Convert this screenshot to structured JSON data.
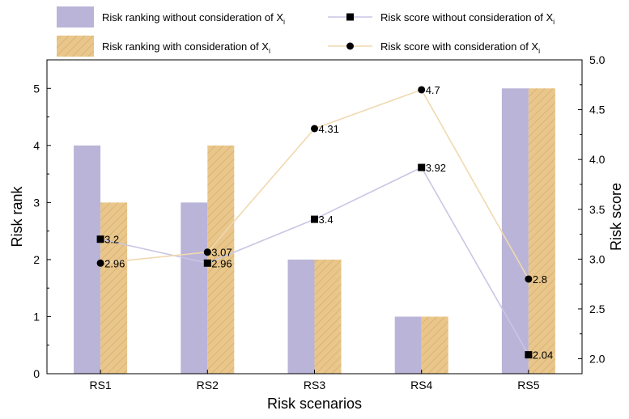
{
  "chart_data": {
    "type": "bar",
    "categories": [
      "RS1",
      "RS2",
      "RS3",
      "RS4",
      "RS5"
    ],
    "xlabel": "Risk scenarios",
    "ylabel": "Risk rank",
    "y2label": "Risk score",
    "ylim": [
      0,
      5.5
    ],
    "y2lim": [
      1.85,
      5.0
    ],
    "yticks": [
      "0",
      "1",
      "2",
      "3",
      "4",
      "5"
    ],
    "y2ticks": [
      "2.0",
      "2.5",
      "3.0",
      "3.5",
      "4.0",
      "4.5",
      "5.0"
    ],
    "grid": false,
    "legend_position": "top",
    "bar_series": [
      {
        "name": "Risk ranking without consideration of X",
        "subscript": "i",
        "values": [
          4,
          3,
          2,
          1,
          5
        ],
        "color": "#b9b4d8"
      },
      {
        "name": "Risk ranking with consideration of X",
        "subscript": "i",
        "values": [
          3,
          4,
          2,
          1,
          5
        ],
        "color": "#e9c78c"
      }
    ],
    "line_series": [
      {
        "name": "Risk score without consideration of X",
        "subscript": "i",
        "values": [
          3.2,
          2.96,
          3.4,
          3.92,
          2.04
        ],
        "labels": [
          "3.2",
          "2.96",
          "3.4",
          "3.92",
          "2.04"
        ],
        "marker": "square",
        "color": "#c9c6e4"
      },
      {
        "name": "Risk score with consideration of X",
        "subscript": "i",
        "values": [
          2.96,
          3.07,
          4.31,
          4.7,
          2.8
        ],
        "labels": [
          "2.96",
          "3.07",
          "4.31",
          "4.7",
          "2.8"
        ],
        "marker": "circle",
        "color": "#f0d9b0"
      }
    ]
  }
}
